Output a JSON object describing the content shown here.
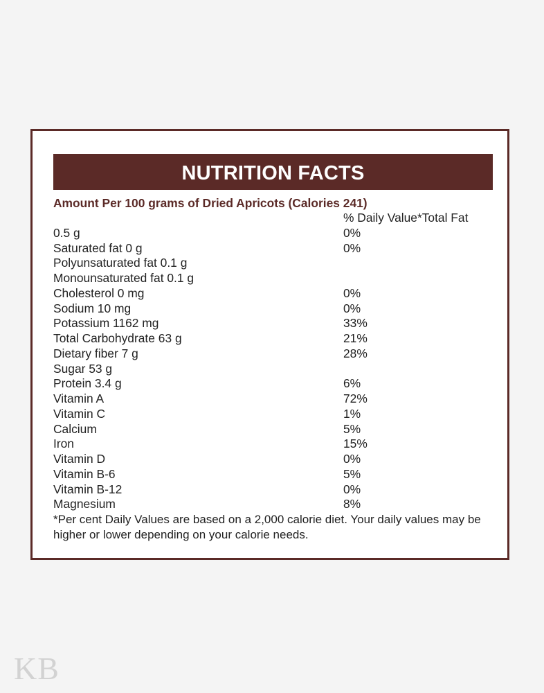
{
  "label": {
    "title": "NUTRITION FACTS",
    "subtitle": "Amount Per 100 grams of Dried Apricots (Calories 241)",
    "dv_header": "% Daily Value*Total Fat",
    "rows": [
      {
        "name": "0.5 g",
        "dv": "0%"
      },
      {
        "name": "Saturated fat 0 g",
        "dv": "0%"
      },
      {
        "name": "Polyunsaturated fat 0.1 g",
        "dv": ""
      },
      {
        "name": "Monounsaturated fat 0.1 g",
        "dv": ""
      },
      {
        "name": "Cholesterol 0 mg",
        "dv": "0%"
      },
      {
        "name": "Sodium 10 mg",
        "dv": "0%"
      },
      {
        "name": "Potassium 1162 mg",
        "dv": "33%"
      },
      {
        "name": "Total Carbohydrate 63 g",
        "dv": "21%"
      },
      {
        "name": "Dietary fiber 7 g",
        "dv": "28%"
      },
      {
        "name": "Sugar 53 g",
        "dv": ""
      },
      {
        "name": "Protein 3.4 g",
        "dv": "6%"
      },
      {
        "name": "Vitamin A",
        "dv": "72%"
      },
      {
        "name": "Vitamin C",
        "dv": "1%"
      },
      {
        "name": "Calcium",
        "dv": "5%"
      },
      {
        "name": "Iron",
        "dv": "15%"
      },
      {
        "name": "Vitamin D",
        "dv": "0%"
      },
      {
        "name": "Vitamin B-6",
        "dv": "5%"
      },
      {
        "name": "Vitamin B-12",
        "dv": "0%"
      },
      {
        "name": "Magnesium",
        "dv": "8%"
      }
    ],
    "footnote": "*Per cent Daily Values are based on a 2,000 calorie diet. Your daily values may be higher or lower depending on your calorie needs."
  },
  "watermark": "KB",
  "colors": {
    "accent": "#5b2a27",
    "background": "#f4f4f4",
    "card": "#ffffff"
  }
}
